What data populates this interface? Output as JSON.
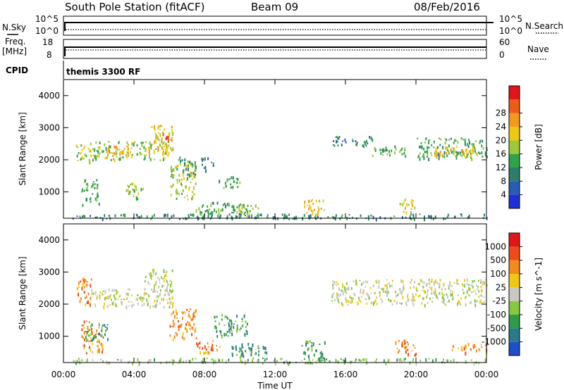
{
  "header": {
    "station": "South Pole Station (fitACF)",
    "beam": "Beam 09",
    "date": "08/Feb/2016"
  },
  "top_panels": {
    "nsky_label": "N.Sky",
    "nsearch_label": "N.Search",
    "nsky_top_tick": "10^5",
    "nsky_bottom_tick": "10^0",
    "nsearch_top_tick": "10^5",
    "nsearch_bottom_tick": "10^0",
    "freq_label_1": "Freq.",
    "freq_label_2": "[MHz]",
    "freq_top_tick": "18",
    "freq_bottom_tick": "8",
    "nave_label": "Nave",
    "nave_top_tick": "60",
    "nave_bottom_tick": "0",
    "cpid_label": "CPID",
    "cpid_text": "themis 3300 RF"
  },
  "chart_data": [
    {
      "type": "heatmap",
      "name": "power",
      "ylabel": "Slant Range [km]",
      "xlabel": "",
      "ylim": [
        180,
        4500
      ],
      "xlim": [
        0,
        24
      ],
      "x_ticks": [
        "00:00",
        "04:00",
        "08:00",
        "12:00",
        "16:00",
        "20:00",
        "00:00"
      ],
      "y_ticks": [
        "1000",
        "2000",
        "3000",
        "4000"
      ],
      "colorbar": {
        "label": "Power [dB]",
        "ticks": [
          "4",
          "8",
          "12",
          "16",
          "20",
          "24",
          "28"
        ],
        "colors": [
          "#1f2fd8",
          "#2a5bb6",
          "#2e7d6a",
          "#2fa34a",
          "#9cc83a",
          "#f0c814",
          "#f39a1c",
          "#ee5a1a",
          "#e0161a"
        ]
      },
      "regions": [
        {
          "t0": 0.7,
          "t1": 1.5,
          "r0": 1900,
          "r1": 2500,
          "level": 4
        },
        {
          "t0": 1.0,
          "t1": 2.0,
          "r0": 600,
          "r1": 1400,
          "level": 3
        },
        {
          "t0": 1.5,
          "t1": 6.0,
          "r0": 2000,
          "r1": 2600,
          "level": 4
        },
        {
          "t0": 2.2,
          "t1": 3.8,
          "r0": 2150,
          "r1": 2450,
          "level": 6
        },
        {
          "t0": 3.5,
          "t1": 4.5,
          "r0": 800,
          "r1": 1300,
          "level": 4
        },
        {
          "t0": 4.8,
          "t1": 6.2,
          "r0": 2300,
          "r1": 3100,
          "level": 5
        },
        {
          "t0": 5.5,
          "t1": 6.0,
          "r0": 2600,
          "r1": 2900,
          "level": 7
        },
        {
          "t0": 6.0,
          "t1": 7.5,
          "r0": 800,
          "r1": 1900,
          "level": 4
        },
        {
          "t0": 6.5,
          "t1": 7.5,
          "r0": 1500,
          "r1": 2100,
          "level": 3
        },
        {
          "t0": 7.8,
          "t1": 8.5,
          "r0": 1700,
          "r1": 2100,
          "level": 2
        },
        {
          "t0": 8.8,
          "t1": 10.0,
          "r0": 1100,
          "r1": 1500,
          "level": 3
        },
        {
          "t0": 7.5,
          "t1": 10.5,
          "r0": 250,
          "r1": 700,
          "level": 3
        },
        {
          "t0": 9.8,
          "t1": 11.2,
          "r0": 300,
          "r1": 650,
          "level": 4
        },
        {
          "t0": 13.6,
          "t1": 14.8,
          "r0": 300,
          "r1": 800,
          "level": 5
        },
        {
          "t0": 15.2,
          "t1": 17.5,
          "r0": 2450,
          "r1": 2750,
          "level": 2
        },
        {
          "t0": 17.5,
          "t1": 19.5,
          "r0": 2150,
          "r1": 2450,
          "level": 3
        },
        {
          "t0": 19.0,
          "t1": 20.0,
          "r0": 400,
          "r1": 800,
          "level": 5
        },
        {
          "t0": 20.0,
          "t1": 24.0,
          "r0": 2050,
          "r1": 2700,
          "level": 3
        },
        {
          "t0": 21.0,
          "t1": 23.5,
          "r0": 2150,
          "r1": 2450,
          "level": 5
        },
        {
          "t0": 0.5,
          "t1": 24.0,
          "r0": 180,
          "r1": 330,
          "level": 2
        }
      ]
    },
    {
      "type": "heatmap",
      "name": "velocity",
      "ylabel": "Slant Range [km]",
      "xlabel": "Time UT",
      "ylim": [
        180,
        4500
      ],
      "xlim": [
        0,
        24
      ],
      "x_ticks": [
        "00:00",
        "04:00",
        "08:00",
        "12:00",
        "16:00",
        "20:00",
        "00:00"
      ],
      "y_ticks": [
        "1000",
        "2000",
        "3000",
        "4000"
      ],
      "colorbar": {
        "label": "Velocity [m s^-1]",
        "ticks": [
          "1000",
          "500",
          "100",
          "25",
          "-25",
          "-100",
          "-500",
          "-1000"
        ],
        "colors": [
          "#1f4fc8",
          "#2a7a8a",
          "#2e9a4a",
          "#86c840",
          "#c8c8c4",
          "#f0c814",
          "#f38a1c",
          "#ee4a1a",
          "#e0161a"
        ]
      },
      "regions": [
        {
          "t0": 0.7,
          "t1": 1.6,
          "r0": 2000,
          "r1": 2900,
          "level": 6
        },
        {
          "t0": 1.0,
          "t1": 2.2,
          "r0": 500,
          "r1": 1500,
          "level": 6
        },
        {
          "t0": 1.2,
          "t1": 2.5,
          "r0": 900,
          "r1": 1400,
          "level": 2
        },
        {
          "t0": 1.5,
          "t1": 6.2,
          "r0": 1950,
          "r1": 2500,
          "level": 4
        },
        {
          "t0": 4.5,
          "t1": 6.2,
          "r0": 2300,
          "r1": 3100,
          "level": 4
        },
        {
          "t0": 6.0,
          "t1": 7.5,
          "r0": 900,
          "r1": 1900,
          "level": 6
        },
        {
          "t0": 7.5,
          "t1": 9.0,
          "r0": 500,
          "r1": 900,
          "level": 6
        },
        {
          "t0": 8.5,
          "t1": 10.5,
          "r0": 1000,
          "r1": 1700,
          "level": 2
        },
        {
          "t0": 9.5,
          "t1": 11.5,
          "r0": 300,
          "r1": 800,
          "level": 2
        },
        {
          "t0": 13.5,
          "t1": 14.8,
          "r0": 300,
          "r1": 900,
          "level": 2
        },
        {
          "t0": 15.2,
          "t1": 24.0,
          "r0": 2000,
          "r1": 2800,
          "level": 4
        },
        {
          "t0": 18.8,
          "t1": 20.0,
          "r0": 400,
          "r1": 900,
          "level": 6
        },
        {
          "t0": 22.0,
          "t1": 24.0,
          "r0": 500,
          "r1": 800,
          "level": 6
        },
        {
          "t0": 0.5,
          "t1": 24.0,
          "r0": 180,
          "r1": 330,
          "level": 3
        }
      ]
    }
  ]
}
